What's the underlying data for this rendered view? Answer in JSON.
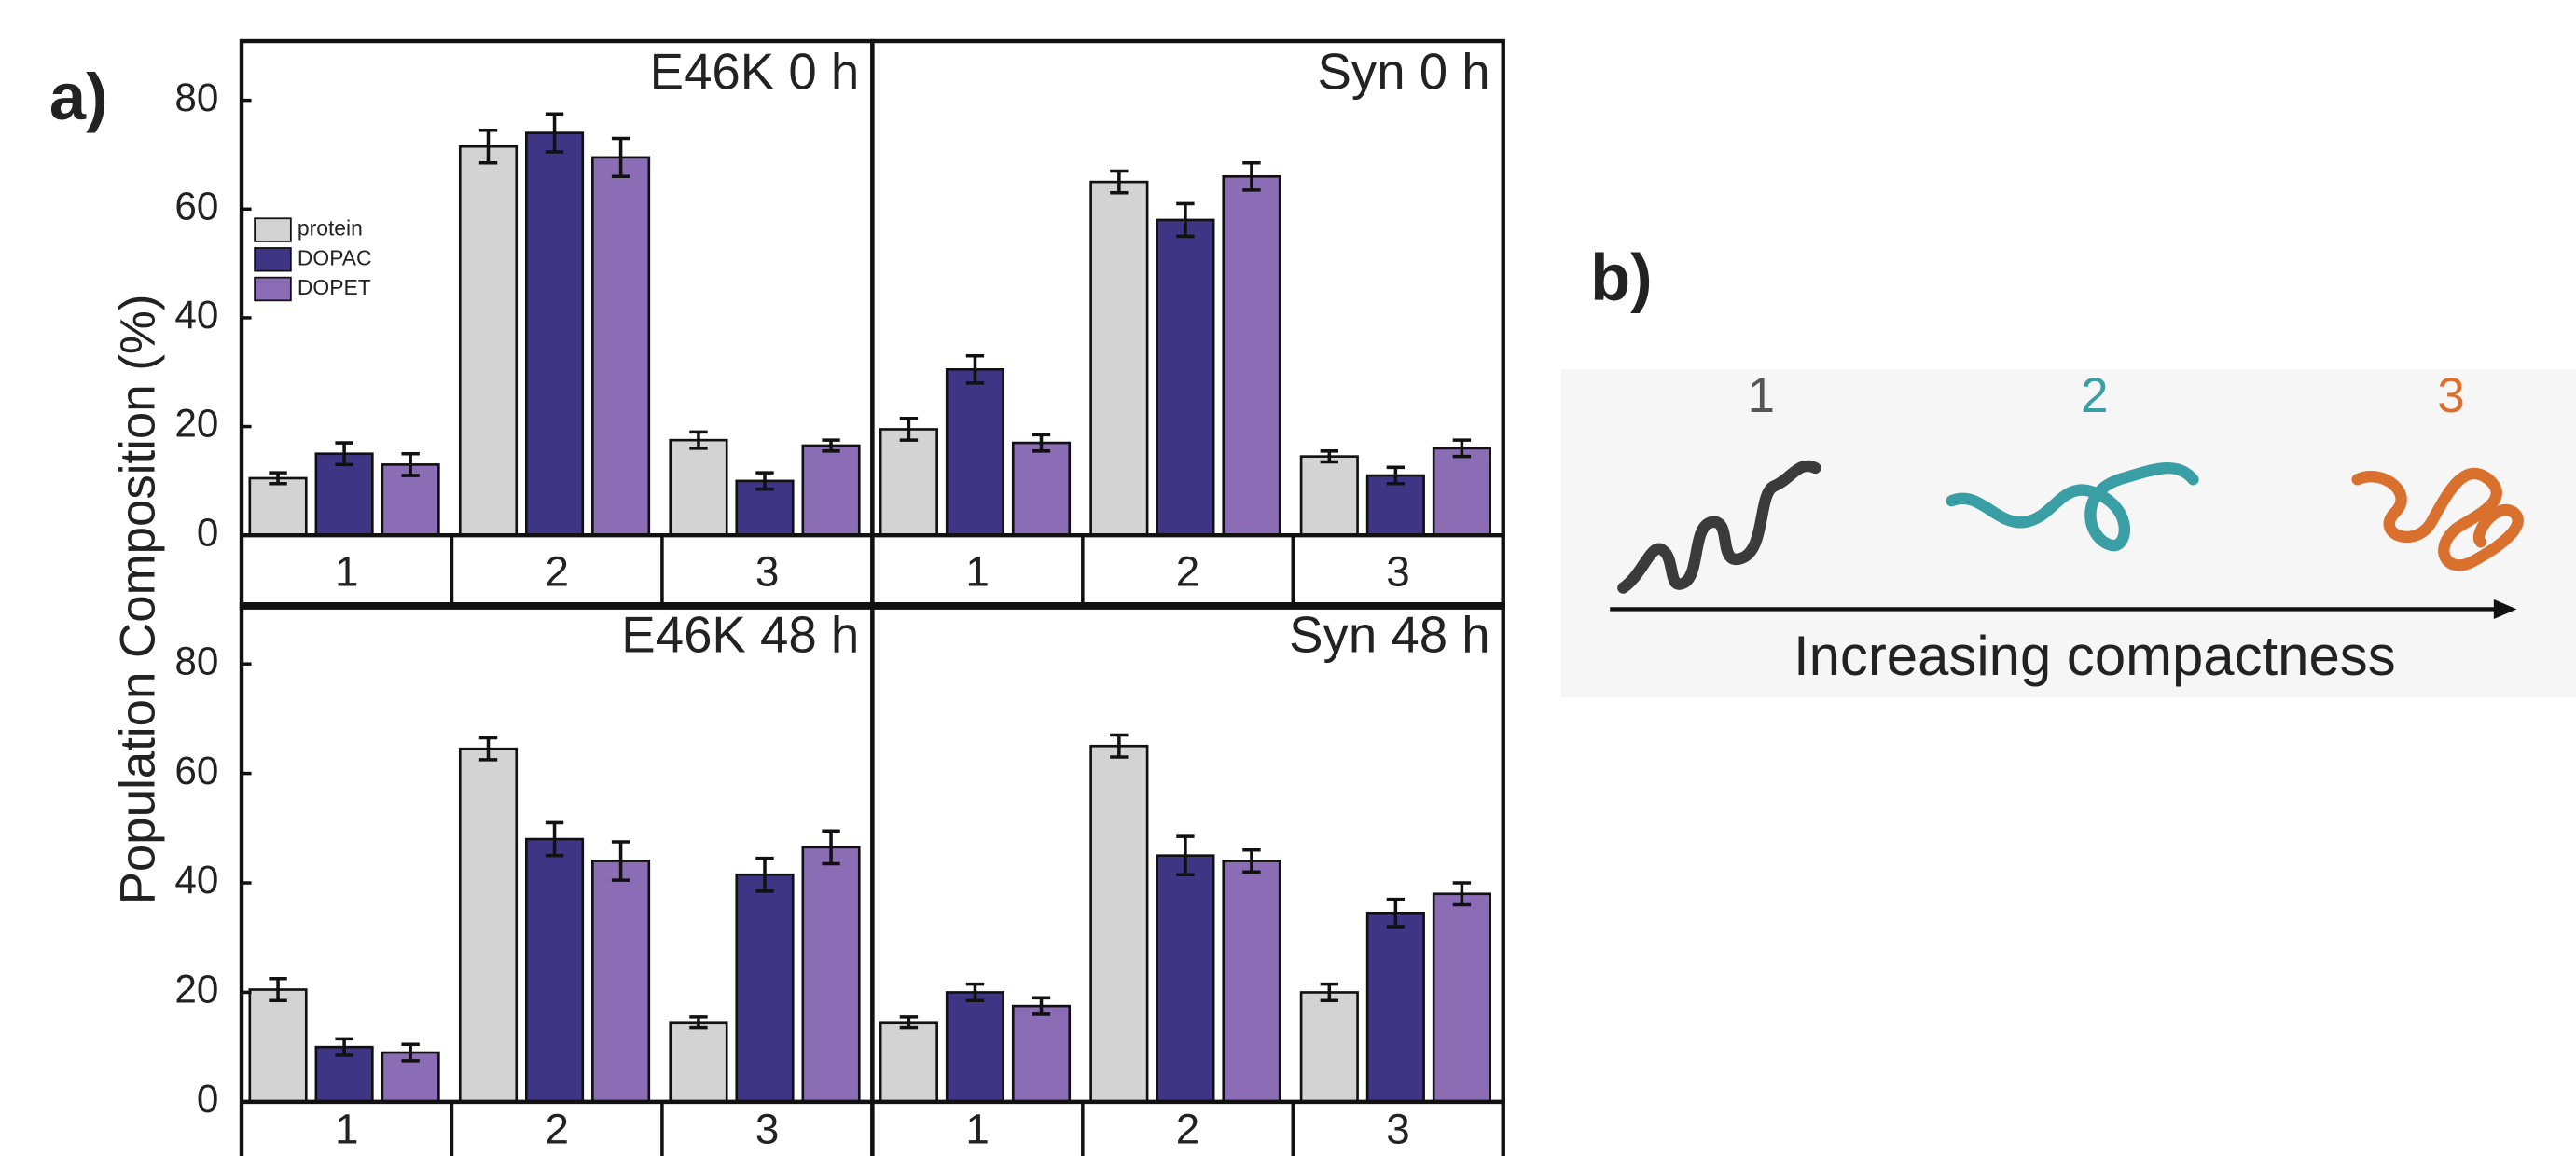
{
  "panel_labels": [
    "a)",
    "b)"
  ],
  "ylabel": "Population Composition (%)",
  "chart_data": [
    {
      "type": "bar",
      "title": "E46K 0 h",
      "categories": [
        "1",
        "2",
        "3"
      ],
      "ylim": [
        0,
        90
      ],
      "yticks": [
        0,
        20,
        40,
        60,
        80
      ],
      "legend": "upper left",
      "series": [
        {
          "name": "protein",
          "color": "#d3d3d3",
          "values": [
            10.5,
            71.5,
            17.5
          ],
          "errors": [
            1,
            3,
            1.5
          ]
        },
        {
          "name": "DOPAC",
          "color": "#3f3585",
          "values": [
            15,
            74,
            10
          ],
          "errors": [
            2,
            3.5,
            1.5
          ]
        },
        {
          "name": "DOPET",
          "color": "#8b6db5",
          "values": [
            13,
            69.5,
            16.5
          ],
          "errors": [
            2,
            3.5,
            1
          ]
        }
      ]
    },
    {
      "type": "bar",
      "title": "Syn 0 h",
      "categories": [
        "1",
        "2",
        "3"
      ],
      "ylim": [
        0,
        90
      ],
      "series": [
        {
          "name": "protein",
          "color": "#d3d3d3",
          "values": [
            19.5,
            65,
            14.5
          ],
          "errors": [
            2,
            2,
            1
          ]
        },
        {
          "name": "DOPAC",
          "color": "#3f3585",
          "values": [
            30.5,
            58,
            11
          ],
          "errors": [
            2.5,
            3,
            1.5
          ]
        },
        {
          "name": "DOPET",
          "color": "#8b6db5",
          "values": [
            17,
            66,
            16
          ],
          "errors": [
            1.5,
            2.5,
            1.5
          ]
        }
      ]
    },
    {
      "type": "bar",
      "title": "E46K 48 h",
      "categories": [
        "1",
        "2",
        "3"
      ],
      "ylim": [
        0,
        90
      ],
      "yticks": [
        0,
        20,
        40,
        60,
        80
      ],
      "series": [
        {
          "name": "protein",
          "color": "#d3d3d3",
          "values": [
            20.5,
            64.5,
            14.5
          ],
          "errors": [
            2,
            2,
            1
          ]
        },
        {
          "name": "DOPAC",
          "color": "#3f3585",
          "values": [
            10,
            48,
            41.5
          ],
          "errors": [
            1.5,
            3,
            3
          ]
        },
        {
          "name": "DOPET",
          "color": "#8b6db5",
          "values": [
            9,
            44,
            46.5
          ],
          "errors": [
            1.5,
            3.5,
            3
          ]
        }
      ]
    },
    {
      "type": "bar",
      "title": "Syn 48 h",
      "categories": [
        "1",
        "2",
        "3"
      ],
      "ylim": [
        0,
        90
      ],
      "series": [
        {
          "name": "protein",
          "color": "#d3d3d3",
          "values": [
            14.5,
            65,
            20
          ],
          "errors": [
            1,
            2,
            1.5
          ]
        },
        {
          "name": "DOPAC",
          "color": "#3f3585",
          "values": [
            20,
            45,
            34.5
          ],
          "errors": [
            1.5,
            3.5,
            2.5
          ]
        },
        {
          "name": "DOPET",
          "color": "#8b6db5",
          "values": [
            17.5,
            44,
            38
          ],
          "errors": [
            1.5,
            2,
            2
          ]
        }
      ]
    }
  ],
  "diagram": {
    "states": [
      "1",
      "2",
      "3"
    ],
    "axis_label": "Increasing compactness"
  }
}
